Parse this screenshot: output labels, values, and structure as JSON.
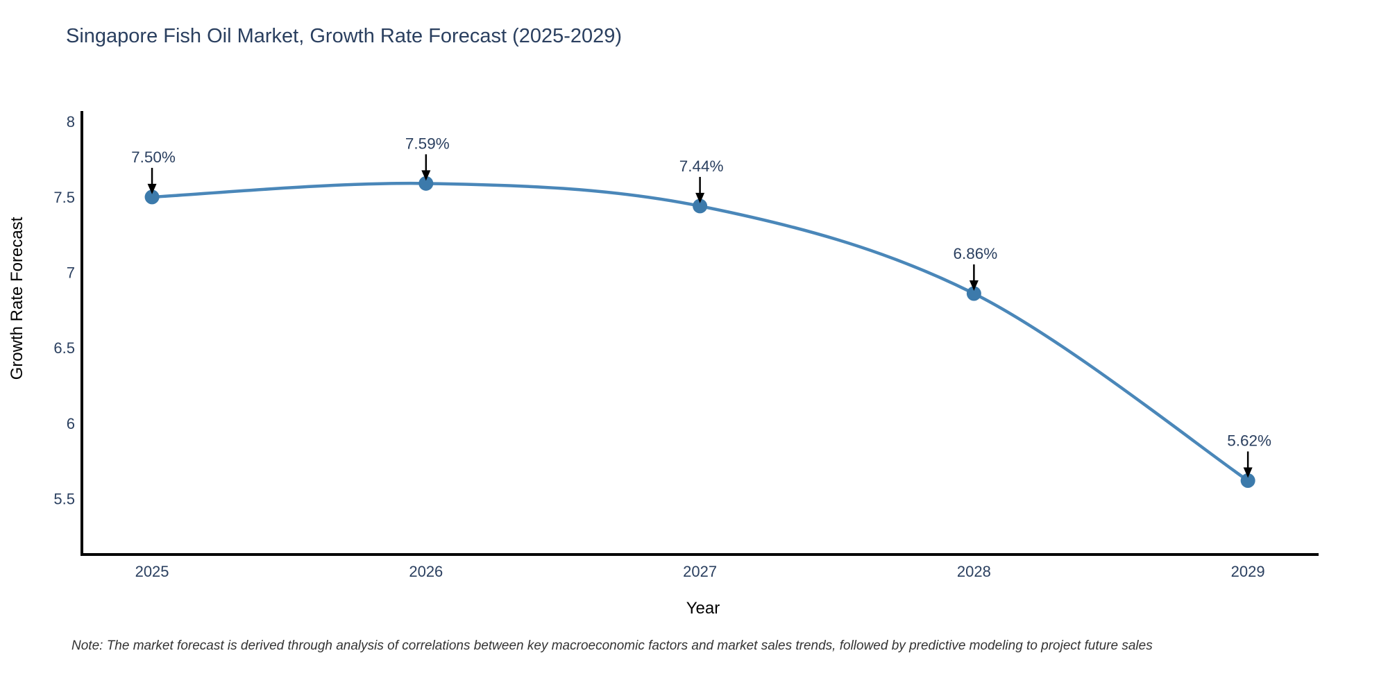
{
  "page": {
    "note": "Note: The market forecast is derived through analysis of correlations between key macroeconomic factors and market sales trends, followed by predictive modeling to project future sales"
  },
  "chart_data": {
    "type": "line",
    "title": "Singapore Fish Oil Market, Growth Rate Forecast (2025-2029)",
    "xlabel": "Year",
    "ylabel": "Growth Rate Forecast",
    "x": [
      2025,
      2026,
      2027,
      2028,
      2029
    ],
    "xtick_labels": [
      "2025",
      "2026",
      "2027",
      "2028",
      "2029"
    ],
    "series": [
      {
        "name": "Growth Rate Forecast",
        "values": [
          7.5,
          7.59,
          7.44,
          6.86,
          5.62
        ],
        "point_labels": [
          "7.50%",
          "7.59%",
          "7.44%",
          "6.86%",
          "5.62%"
        ]
      }
    ],
    "yticks": [
      8,
      7.5,
      7,
      6.5,
      6,
      5.5
    ],
    "ytick_labels": [
      "8",
      "7.5",
      "7",
      "6.5",
      "6",
      "5.5"
    ],
    "ylim": [
      5.13,
      8.07
    ],
    "xlim": [
      2024.744,
      2029.258
    ],
    "grid": false,
    "legend_position": "none",
    "line_shape": "spline",
    "colors": {
      "line": "#4a87b9",
      "marker": "#3c7aab",
      "axis": "#000000",
      "text": "#2a3f5f",
      "annotation_text": "#2a3f5f",
      "annotation_arrow": "#000000",
      "note_text": "#333333",
      "background": "#ffffff"
    }
  }
}
